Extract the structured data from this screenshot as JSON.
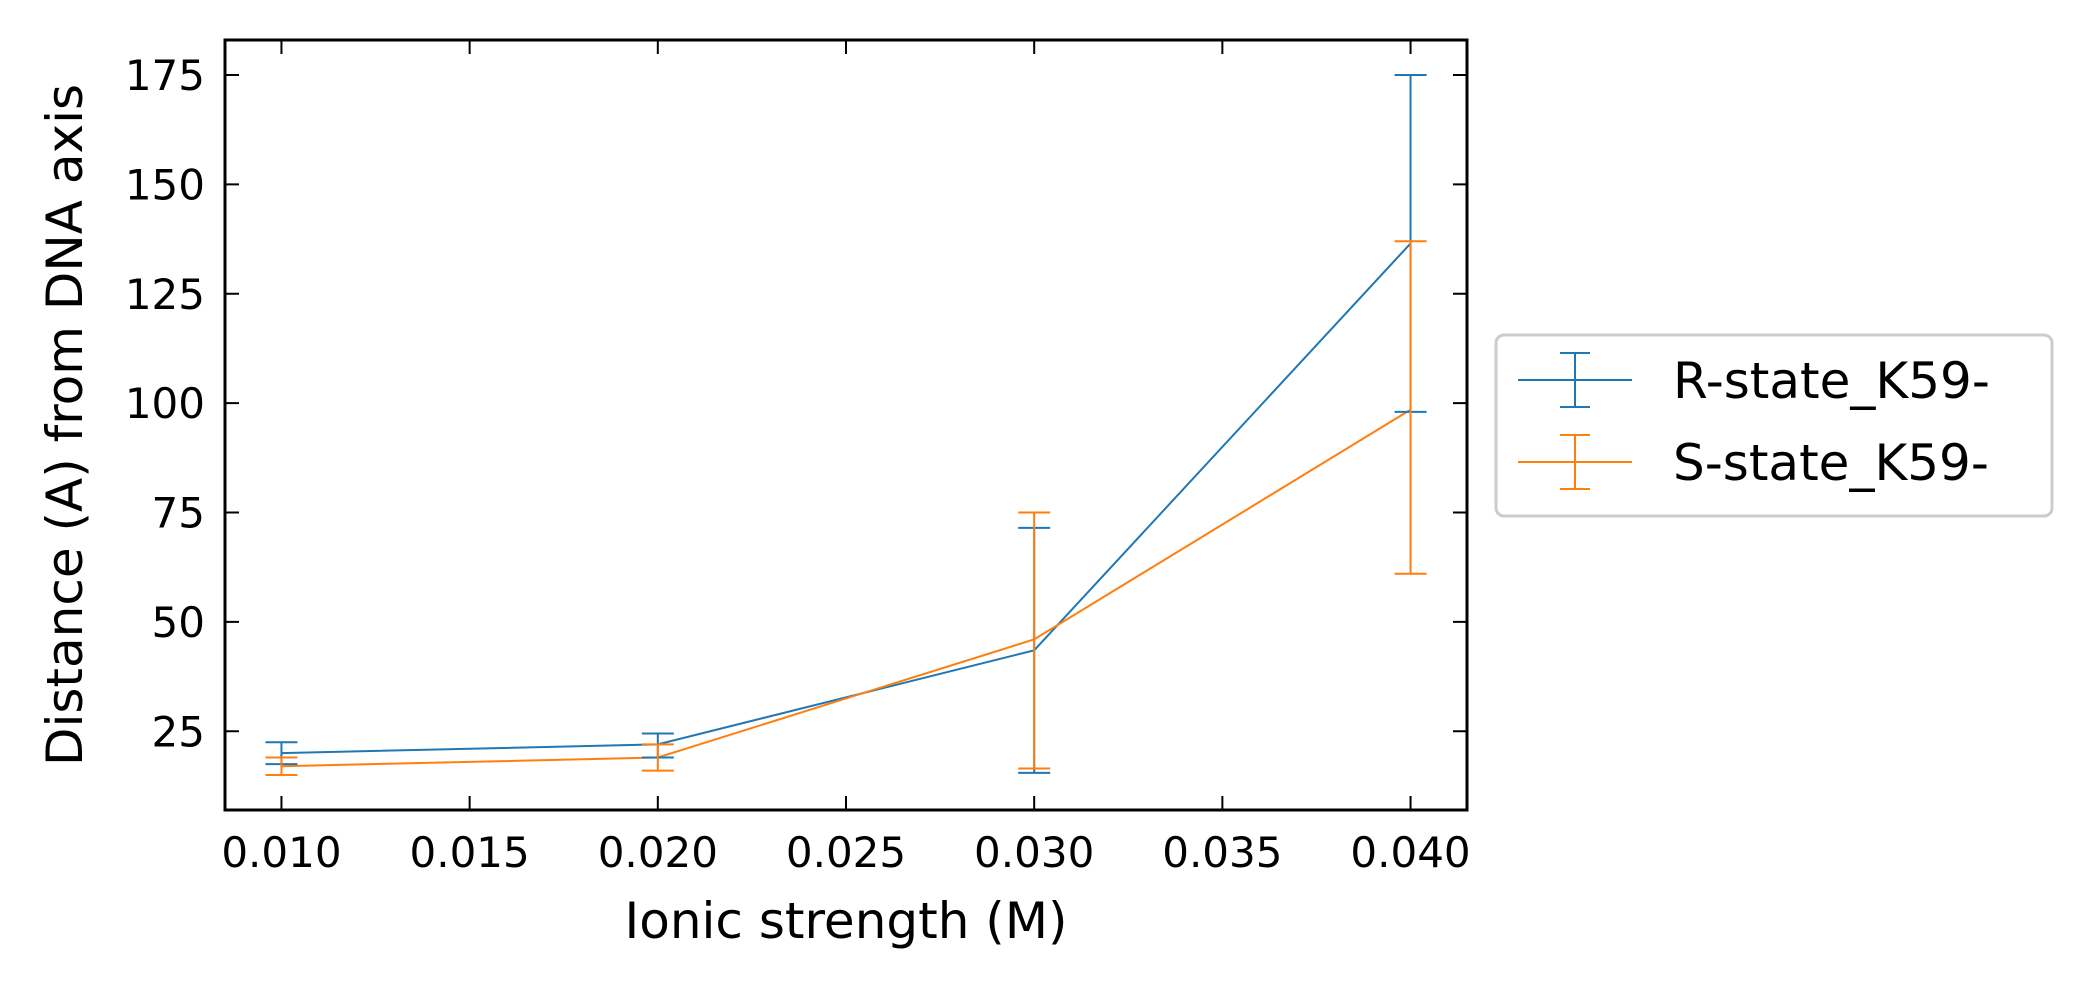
{
  "chart_data": {
    "type": "line",
    "title": "",
    "xlabel": "Ionic strength (M)",
    "ylabel": "Distance (A) from DNA axis",
    "x": [
      0.01,
      0.02,
      0.03,
      0.04
    ],
    "xlim": [
      0.0085,
      0.0415
    ],
    "ylim": [
      7,
      183
    ],
    "x_ticks": [
      "0.010",
      "0.015",
      "0.020",
      "0.025",
      "0.030",
      "0.035",
      "0.040"
    ],
    "y_ticks": [
      "25",
      "50",
      "75",
      "100",
      "125",
      "150",
      "175"
    ],
    "grid": false,
    "error_bars": true,
    "legend_placement": "outside right",
    "series": [
      {
        "name": "R-state_K59-",
        "color": "#1f77b4",
        "values": [
          20,
          22,
          43.5,
          136.5
        ],
        "err_low": [
          17.5,
          19,
          15.5,
          98
        ],
        "err_high": [
          22.5,
          24.5,
          71.5,
          175
        ]
      },
      {
        "name": "S-state_K59-",
        "color": "#ff7f0e",
        "values": [
          17,
          19,
          46,
          98.5
        ],
        "err_low": [
          15,
          16,
          16.5,
          61
        ],
        "err_high": [
          19,
          22,
          75,
          137
        ]
      }
    ]
  }
}
